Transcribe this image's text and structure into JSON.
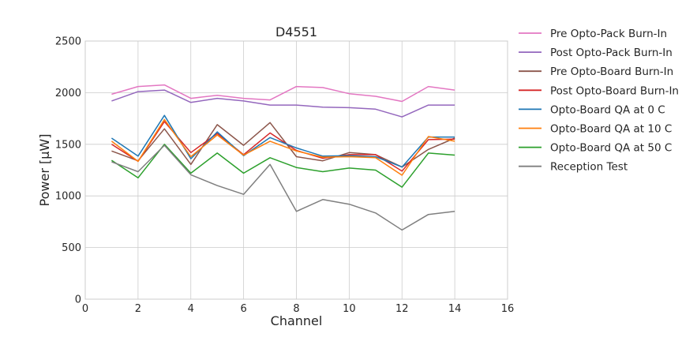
{
  "chart_data": {
    "type": "line",
    "title": "D4551",
    "xlabel": "Channel",
    "ylabel": "Power [μW]",
    "xlim": [
      0,
      16
    ],
    "ylim": [
      0,
      2500
    ],
    "xticks": [
      0,
      2,
      4,
      6,
      8,
      10,
      12,
      14,
      16
    ],
    "yticks": [
      0,
      500,
      1000,
      1500,
      2000,
      2500
    ],
    "grid": true,
    "legend_position": "outside-right",
    "x": [
      1,
      2,
      3,
      4,
      5,
      6,
      7,
      8,
      9,
      10,
      11,
      12,
      13,
      14
    ],
    "series": [
      {
        "name": "Pre Opto-Pack Burn-In",
        "color": "#e377c2",
        "values": [
          1985,
          2060,
          2075,
          1945,
          1975,
          1945,
          1930,
          2060,
          2050,
          1990,
          1965,
          1915,
          2060,
          2025
        ]
      },
      {
        "name": "Post Opto-Pack Burn-In",
        "color": "#9467bd",
        "values": [
          1920,
          2010,
          2025,
          1905,
          1945,
          1920,
          1880,
          1880,
          1860,
          1855,
          1840,
          1765,
          1880,
          1880
        ]
      },
      {
        "name": "Pre Opto-Board Burn-In",
        "color": "#8c564b",
        "values": [
          1435,
          1340,
          1650,
          1305,
          1690,
          1490,
          1710,
          1380,
          1340,
          1420,
          1400,
          1280,
          1450,
          1560
        ]
      },
      {
        "name": "Post Opto-Board Burn-In",
        "color": "#d62728",
        "values": [
          1500,
          1335,
          1720,
          1420,
          1605,
          1400,
          1610,
          1440,
          1365,
          1400,
          1400,
          1240,
          1545,
          1550
        ]
      },
      {
        "name": "Opto-Board QA at 0 C",
        "color": "#1f77b4",
        "values": [
          1560,
          1385,
          1780,
          1360,
          1620,
          1390,
          1565,
          1465,
          1385,
          1390,
          1380,
          1280,
          1570,
          1570
        ]
      },
      {
        "name": "Opto-Board QA at 10 C",
        "color": "#ff7f0e",
        "values": [
          1530,
          1335,
          1740,
          1380,
          1590,
          1395,
          1530,
          1435,
          1375,
          1380,
          1370,
          1200,
          1575,
          1530
        ]
      },
      {
        "name": "Opto-Board QA at 50 C",
        "color": "#2ca02c",
        "values": [
          1345,
          1175,
          1500,
          1220,
          1415,
          1220,
          1370,
          1275,
          1235,
          1270,
          1250,
          1085,
          1415,
          1395
        ]
      },
      {
        "name": "Reception Test",
        "color": "#7f7f7f",
        "values": [
          1330,
          1235,
          1490,
          1205,
          1100,
          1015,
          1305,
          850,
          965,
          920,
          835,
          670,
          820,
          850
        ]
      }
    ]
  }
}
